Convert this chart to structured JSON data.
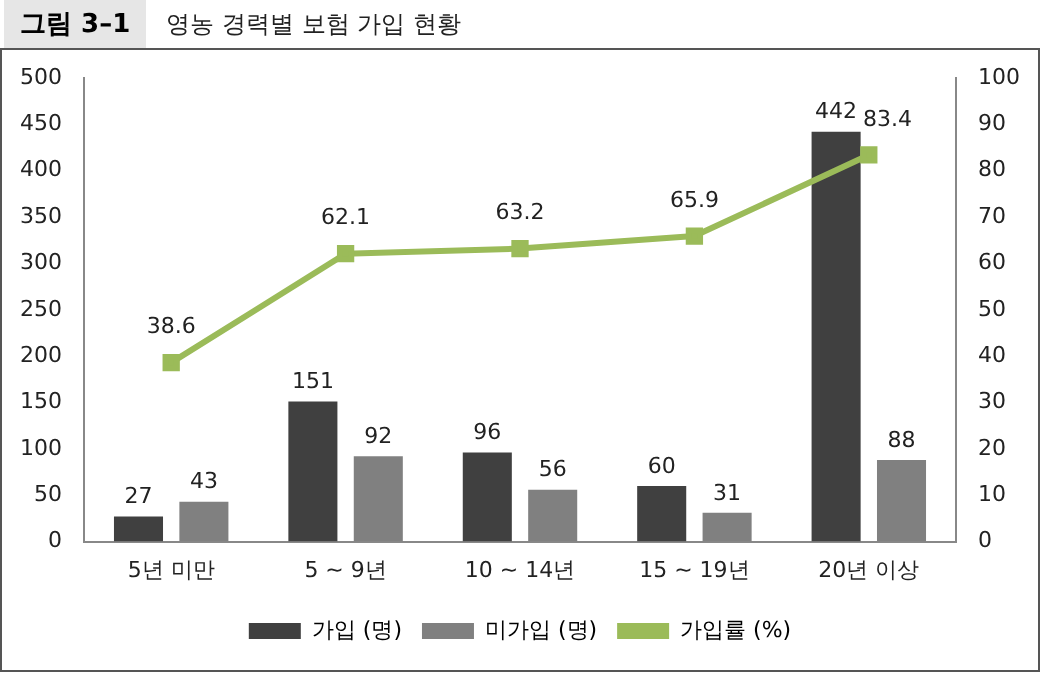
{
  "chart_data": {
    "type": "bar",
    "title": "그림 3–1",
    "subtitle": "영농 경력별 보험 가입 현황",
    "categories": [
      "5년 미만",
      "5 ~ 9년",
      "10 ~ 14년",
      "15 ~ 19년",
      "20년 이상"
    ],
    "series": [
      {
        "name": "가입 (명)",
        "color": "#404040",
        "values": [
          27,
          151,
          96,
          60,
          442
        ]
      },
      {
        "name": "미가입 (명)",
        "color": "#808080",
        "values": [
          43,
          92,
          56,
          31,
          88
        ]
      },
      {
        "name": "가입률 (%)",
        "type": "line",
        "axis": "y2",
        "color": "#9bbb59",
        "values": [
          38.6,
          62.1,
          63.2,
          65.9,
          83.4
        ]
      }
    ],
    "ylim": [
      0,
      500
    ],
    "yticks": [
      0,
      50,
      100,
      150,
      200,
      250,
      300,
      350,
      400,
      450,
      500
    ],
    "y2lim": [
      0,
      100
    ],
    "y2ticks": [
      0,
      10,
      20,
      30,
      40,
      50,
      60,
      70,
      80,
      90,
      100
    ],
    "data_labels": true,
    "legend": "bottom",
    "grid": false,
    "marker": "square",
    "line_style": "solid"
  }
}
